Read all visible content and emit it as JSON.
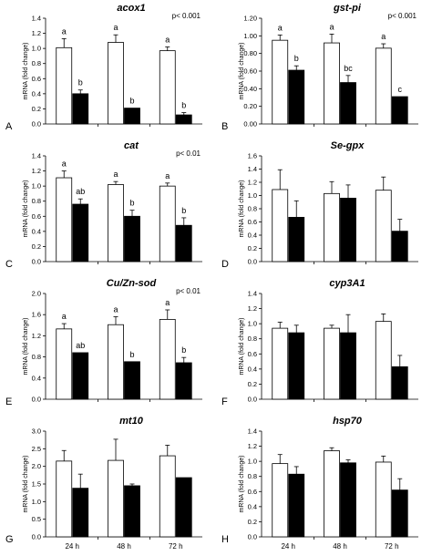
{
  "figure": {
    "ylabel": "mRNA (fold change)",
    "group_labels": [
      "24 h",
      "48 h",
      "72 h"
    ]
  },
  "colors": {
    "control": "#ffffff",
    "treated": "#000000",
    "axis": "#000000"
  },
  "chart_data": [
    {
      "type": "bar",
      "panel_letter": "A",
      "title": "acox1",
      "pvalue": "p< 0.001",
      "ylabel": "mRNA (fold change)",
      "categories": [
        "24 h",
        "48 h",
        "72 h"
      ],
      "ylim": [
        0,
        1.4
      ],
      "ytick_step": 0.2,
      "yticks": [
        "0.0",
        "0.2",
        "0.4",
        "0.6",
        "0.8",
        "1.0",
        "1.2",
        "1.4"
      ],
      "series": [
        {
          "values": [
            1.01,
            1.08,
            0.97
          ],
          "errors": [
            0.12,
            0.1,
            0.05
          ],
          "letters": [
            "a",
            "a",
            "a"
          ]
        },
        {
          "values": [
            0.4,
            0.21,
            0.12
          ],
          "errors": [
            0.05,
            0.0,
            0.03
          ],
          "letters": [
            "b",
            "b",
            "b"
          ]
        }
      ]
    },
    {
      "type": "bar",
      "panel_letter": "B",
      "title": "gst-pi",
      "pvalue": "p< 0.001",
      "ylabel": "mRNA (fold change)",
      "categories": [
        "24 h",
        "48 h",
        "72 h"
      ],
      "ylim": [
        0,
        1.2
      ],
      "ytick_step": 0.2,
      "yticks": [
        "0.00",
        "0.20",
        "0.40",
        "0.60",
        "0.80",
        "1.00",
        "1.20"
      ],
      "series": [
        {
          "values": [
            0.95,
            0.92,
            0.86
          ],
          "errors": [
            0.06,
            0.1,
            0.05
          ],
          "letters": [
            "a",
            "a",
            "a"
          ]
        },
        {
          "values": [
            0.61,
            0.47,
            0.31
          ],
          "errors": [
            0.05,
            0.08,
            0.0
          ],
          "letters": [
            "b",
            "bc",
            "c"
          ]
        }
      ]
    },
    {
      "type": "bar",
      "panel_letter": "C",
      "title": "cat",
      "pvalue": "p< 0.01",
      "ylabel": "mRNA (fold change)",
      "categories": [
        "24 h",
        "48 h",
        "72 h"
      ],
      "ylim": [
        0,
        1.4
      ],
      "ytick_step": 0.2,
      "yticks": [
        "0.0",
        "0.2",
        "0.4",
        "0.6",
        "0.8",
        "1.0",
        "1.2",
        "1.4"
      ],
      "series": [
        {
          "values": [
            1.11,
            1.02,
            1.0
          ],
          "errors": [
            0.09,
            0.04,
            0.04
          ],
          "letters": [
            "a",
            "a",
            "a"
          ]
        },
        {
          "values": [
            0.76,
            0.6,
            0.48
          ],
          "errors": [
            0.07,
            0.08,
            0.1
          ],
          "letters": [
            "ab",
            "b",
            "b"
          ]
        }
      ]
    },
    {
      "type": "bar",
      "panel_letter": "D",
      "title": "Se-gpx",
      "pvalue": "",
      "ylabel": "mRNA (fold change)",
      "categories": [
        "24 h",
        "48 h",
        "72 h"
      ],
      "ylim": [
        0,
        1.6
      ],
      "ytick_step": 0.2,
      "yticks": [
        "0.0",
        "0.2",
        "0.4",
        "0.6",
        "0.8",
        "1.0",
        "1.2",
        "1.4",
        "1.6"
      ],
      "series": [
        {
          "values": [
            1.09,
            1.03,
            1.08
          ],
          "errors": [
            0.3,
            0.18,
            0.2
          ],
          "letters": [
            "",
            "",
            ""
          ]
        },
        {
          "values": [
            0.67,
            0.96,
            0.46
          ],
          "errors": [
            0.25,
            0.2,
            0.18
          ],
          "letters": [
            "",
            "",
            ""
          ]
        }
      ]
    },
    {
      "type": "bar",
      "panel_letter": "E",
      "title": "Cu/Zn-sod",
      "pvalue": "p< 0.01",
      "ylabel": "mRNA (fold change)",
      "categories": [
        "24 h",
        "48 h",
        "72 h"
      ],
      "ylim": [
        0,
        2.0
      ],
      "ytick_step": 0.4,
      "yticks": [
        "0.0",
        "0.4",
        "0.8",
        "1.2",
        "1.6",
        "2.0"
      ],
      "series": [
        {
          "values": [
            1.33,
            1.41,
            1.51
          ],
          "errors": [
            0.1,
            0.15,
            0.18
          ],
          "letters": [
            "a",
            "a",
            "a"
          ]
        },
        {
          "values": [
            0.88,
            0.71,
            0.69
          ],
          "errors": [
            0.0,
            0.0,
            0.1
          ],
          "letters": [
            "ab",
            "b",
            "b"
          ]
        }
      ]
    },
    {
      "type": "bar",
      "panel_letter": "F",
      "title": "cyp3A1",
      "pvalue": "",
      "ylabel": "mRNA (fold change)",
      "categories": [
        "24 h",
        "48 h",
        "72 h"
      ],
      "ylim": [
        0,
        1.4
      ],
      "ytick_step": 0.2,
      "yticks": [
        "0.0",
        "0.2",
        "0.4",
        "0.6",
        "0.8",
        "1.0",
        "1.2",
        "1.4"
      ],
      "series": [
        {
          "values": [
            0.94,
            0.94,
            1.03
          ],
          "errors": [
            0.08,
            0.04,
            0.1
          ],
          "letters": [
            "",
            "",
            ""
          ]
        },
        {
          "values": [
            0.88,
            0.88,
            0.43
          ],
          "errors": [
            0.1,
            0.24,
            0.15
          ],
          "letters": [
            "",
            "",
            ""
          ]
        }
      ]
    },
    {
      "type": "bar",
      "panel_letter": "G",
      "title": "mt10",
      "pvalue": "",
      "ylabel": "mRNA (fold change)",
      "categories": [
        "24 h",
        "48 h",
        "72 h"
      ],
      "ylim": [
        0,
        3.0
      ],
      "ytick_step": 0.5,
      "yticks": [
        "0.0",
        "0.5",
        "1.0",
        "1.5",
        "2.0",
        "2.5",
        "3.0"
      ],
      "series": [
        {
          "values": [
            2.15,
            2.17,
            2.3
          ],
          "errors": [
            0.3,
            0.6,
            0.3
          ],
          "letters": [
            "",
            "",
            ""
          ]
        },
        {
          "values": [
            1.38,
            1.45,
            1.68
          ],
          "errors": [
            0.4,
            0.05,
            0.0
          ],
          "letters": [
            "",
            "",
            ""
          ]
        }
      ]
    },
    {
      "type": "bar",
      "panel_letter": "H",
      "title": "hsp70",
      "pvalue": "",
      "ylabel": "mRNA (fold change)",
      "categories": [
        "24 h",
        "48 h",
        "72 h"
      ],
      "ylim": [
        0,
        1.4
      ],
      "ytick_step": 0.2,
      "yticks": [
        "0.0",
        "0.2",
        "0.4",
        "0.6",
        "0.8",
        "1.0",
        "1.2",
        "1.4"
      ],
      "series": [
        {
          "values": [
            0.97,
            1.14,
            0.99
          ],
          "errors": [
            0.12,
            0.04,
            0.08
          ],
          "letters": [
            "",
            "",
            ""
          ]
        },
        {
          "values": [
            0.83,
            0.98,
            0.62
          ],
          "errors": [
            0.1,
            0.04,
            0.15
          ],
          "letters": [
            "",
            "",
            ""
          ]
        }
      ]
    }
  ]
}
